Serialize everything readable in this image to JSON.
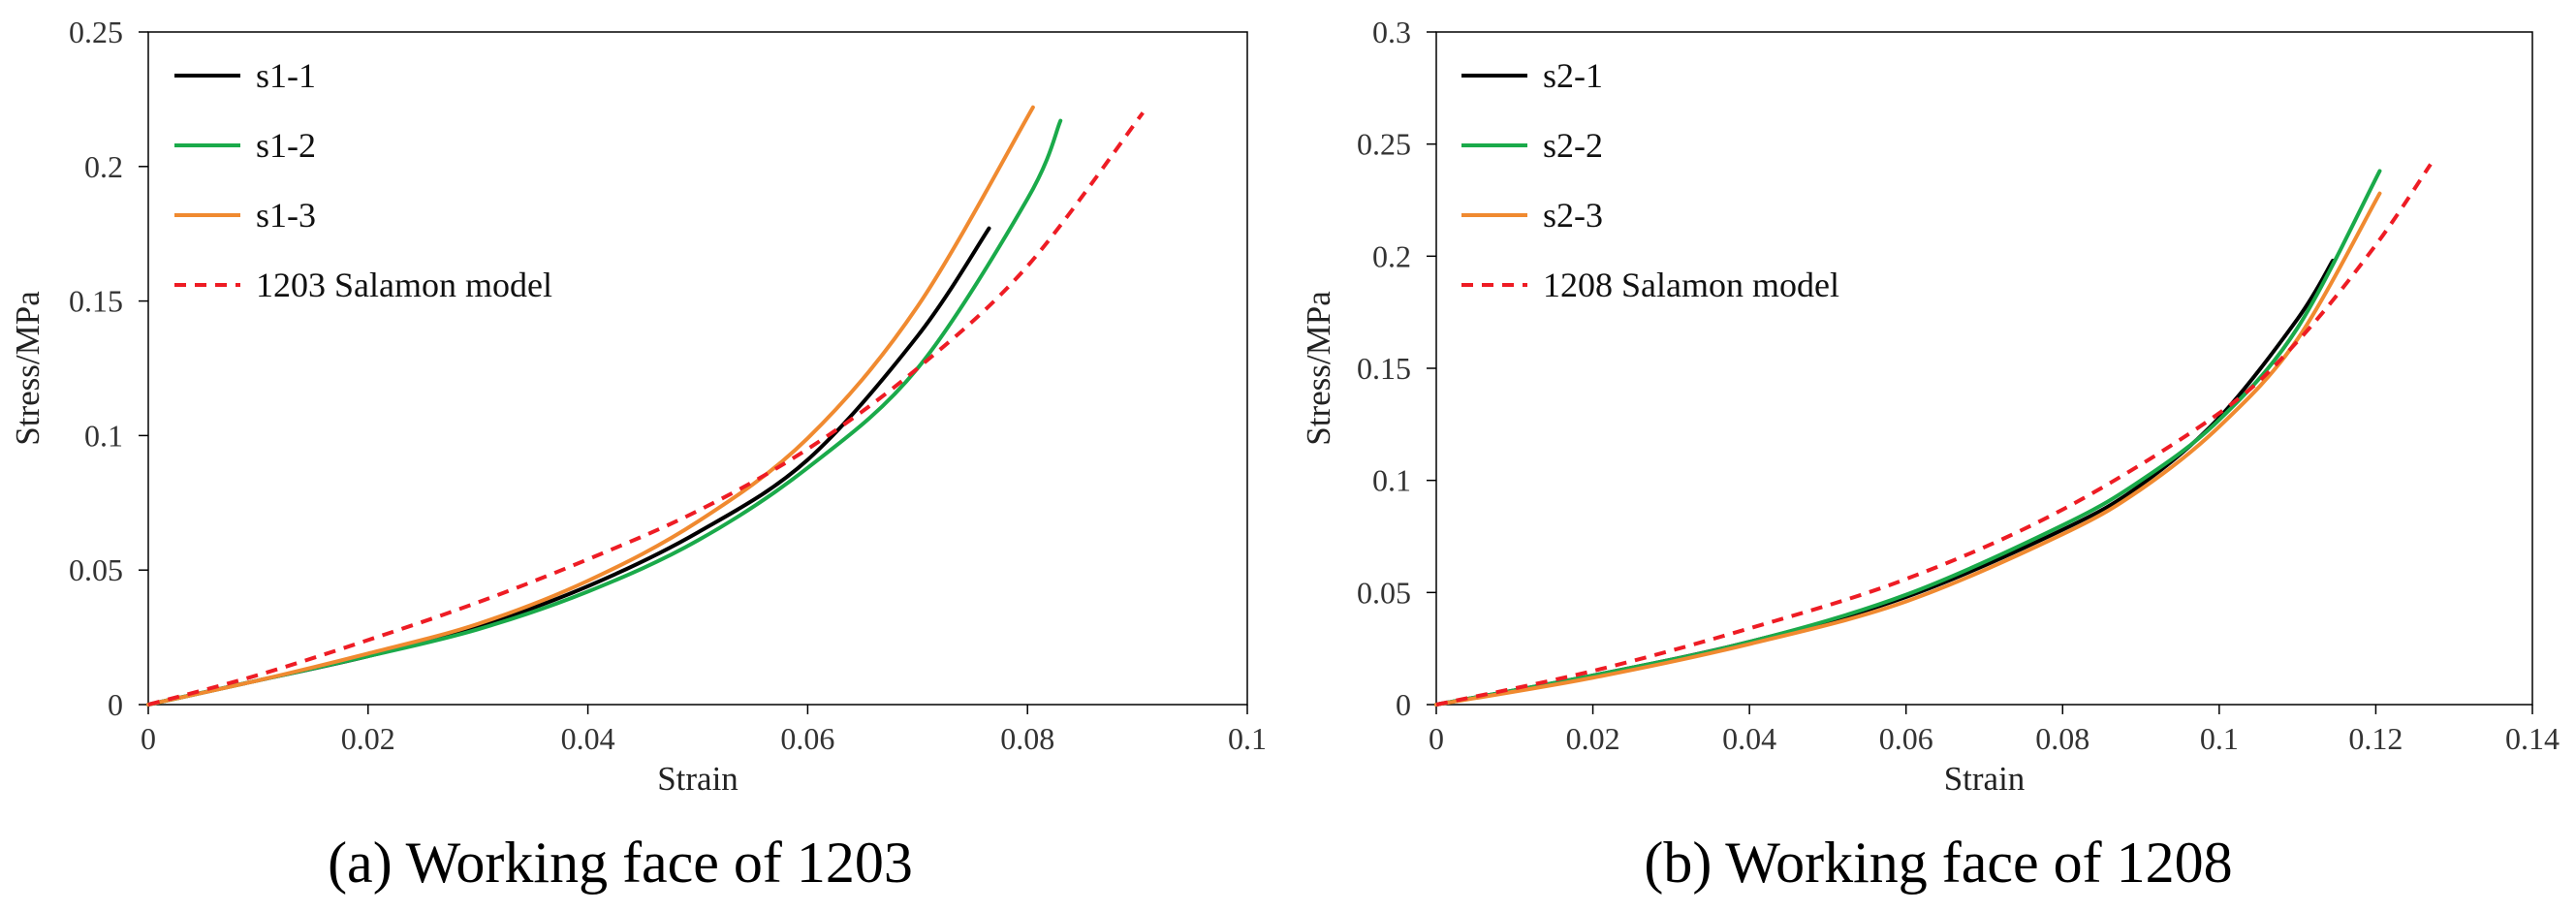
{
  "chart_data": [
    {
      "type": "line",
      "caption": "(a) Working face of 1203",
      "xlabel": "Strain",
      "ylabel": "Stress/MPa",
      "xlim": [
        0,
        0.1
      ],
      "ylim": [
        0,
        0.25
      ],
      "xticks": [
        0,
        0.02,
        0.04,
        0.06,
        0.08,
        0.1
      ],
      "xtick_labels": [
        "0",
        "0.02",
        "0.04",
        "0.06",
        "0.08",
        "0.1"
      ],
      "yticks": [
        0,
        0.05,
        0.1,
        0.15,
        0.2,
        0.25
      ],
      "ytick_labels": [
        "0",
        "0.05",
        "0.1",
        "0.15",
        "0.2",
        "0.25"
      ],
      "legend_position": "top-left",
      "series": [
        {
          "name": "s1-1",
          "color": "#000000",
          "dash": "solid",
          "x": [
            0,
            0.01,
            0.02,
            0.03,
            0.04,
            0.05,
            0.06,
            0.07,
            0.0765
          ],
          "y": [
            0,
            0.009,
            0.018,
            0.029,
            0.044,
            0.064,
            0.091,
            0.137,
            0.177
          ]
        },
        {
          "name": "s1-2",
          "color": "#1aaa4a",
          "dash": "solid",
          "x": [
            0,
            0.01,
            0.02,
            0.03,
            0.04,
            0.05,
            0.06,
            0.07,
            0.08,
            0.083
          ],
          "y": [
            0,
            0.009,
            0.018,
            0.028,
            0.042,
            0.061,
            0.088,
            0.125,
            0.188,
            0.217
          ]
        },
        {
          "name": "s1-3",
          "color": "#f08a30",
          "dash": "solid",
          "x": [
            0,
            0.01,
            0.02,
            0.03,
            0.04,
            0.05,
            0.06,
            0.07,
            0.0805
          ],
          "y": [
            0,
            0.009,
            0.019,
            0.03,
            0.046,
            0.068,
            0.099,
            0.148,
            0.222
          ]
        },
        {
          "name": "1203 Salamon model",
          "color": "#ee1c24",
          "dash": "dashed",
          "x": [
            0,
            0.01,
            0.02,
            0.03,
            0.04,
            0.05,
            0.06,
            0.07,
            0.08,
            0.0905
          ],
          "y": [
            0,
            0.011,
            0.024,
            0.038,
            0.054,
            0.072,
            0.095,
            0.125,
            0.163,
            0.22
          ]
        }
      ]
    },
    {
      "type": "line",
      "caption": "(b) Working face of 1208",
      "xlabel": "Strain",
      "ylabel": "Stress/MPa",
      "xlim": [
        0,
        0.14
      ],
      "ylim": [
        0,
        0.3
      ],
      "xticks": [
        0,
        0.02,
        0.04,
        0.06,
        0.08,
        0.1,
        0.12,
        0.14
      ],
      "xtick_labels": [
        "0",
        "0.02",
        "0.04",
        "0.06",
        "0.08",
        "0.1",
        "0.12",
        "0.14"
      ],
      "yticks": [
        0,
        0.05,
        0.1,
        0.15,
        0.2,
        0.25,
        0.3
      ],
      "ytick_labels": [
        "0",
        "0.05",
        "0.1",
        "0.15",
        "0.2",
        "0.25",
        "0.3"
      ],
      "legend_position": "top-left",
      "series": [
        {
          "name": "s2-1",
          "color": "#000000",
          "dash": "solid",
          "x": [
            0,
            0.02,
            0.04,
            0.06,
            0.08,
            0.09,
            0.1,
            0.11,
            0.1145
          ],
          "y": [
            0,
            0.013,
            0.028,
            0.048,
            0.078,
            0.098,
            0.128,
            0.172,
            0.198
          ]
        },
        {
          "name": "s2-2",
          "color": "#1aaa4a",
          "dash": "solid",
          "x": [
            0,
            0.02,
            0.04,
            0.06,
            0.08,
            0.09,
            0.1,
            0.11,
            0.1205
          ],
          "y": [
            0,
            0.013,
            0.028,
            0.049,
            0.08,
            0.1,
            0.127,
            0.168,
            0.238
          ]
        },
        {
          "name": "s2-3",
          "color": "#f08a30",
          "dash": "solid",
          "x": [
            0,
            0.02,
            0.04,
            0.06,
            0.08,
            0.09,
            0.1,
            0.11,
            0.1205
          ],
          "y": [
            0,
            0.012,
            0.027,
            0.046,
            0.076,
            0.096,
            0.124,
            0.163,
            0.228
          ]
        },
        {
          "name": "1208 Salamon model",
          "color": "#ee1c24",
          "dash": "dashed",
          "x": [
            0,
            0.02,
            0.04,
            0.06,
            0.08,
            0.1,
            0.11,
            0.12,
            0.127
          ],
          "y": [
            0,
            0.015,
            0.034,
            0.056,
            0.087,
            0.13,
            0.162,
            0.205,
            0.241
          ]
        }
      ]
    }
  ]
}
